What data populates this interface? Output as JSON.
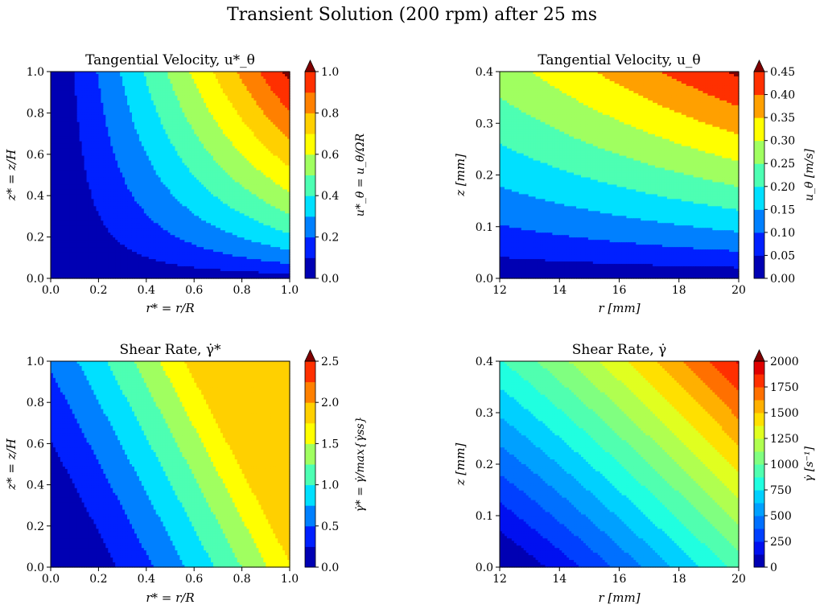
{
  "figure": {
    "suptitle": "Transient Solution (200 rpm) after 25 ms"
  },
  "chart_data": [
    {
      "type": "contourf",
      "title": "Tangential Velocity, u*_θ",
      "xlabel": "r* = r/R",
      "ylabel": "z* = z/H",
      "xlim": [
        0.0,
        1.0
      ],
      "ylim": [
        0.0,
        1.0
      ],
      "xticks": [
        "0.0",
        "0.2",
        "0.4",
        "0.6",
        "0.8",
        "1.0"
      ],
      "yticks": [
        "0.0",
        "0.2",
        "0.4",
        "0.6",
        "0.8",
        "1.0"
      ],
      "colorbar_label": "u*_θ = u_θ/ΩR",
      "colorbar_ticks": [
        "0.0",
        "0.2",
        "0.4",
        "0.6",
        "0.8",
        "1.0"
      ],
      "levels": [
        0.0,
        0.1,
        0.2,
        0.3,
        0.4,
        0.5,
        0.6,
        0.7,
        0.8,
        0.9,
        1.0
      ],
      "colorbar_extend": "max",
      "colormap": [
        "#0000b3",
        "#0020ff",
        "#0080ff",
        "#00e0ff",
        "#4dffb3",
        "#a0ff60",
        "#ffff00",
        "#ffd000",
        "#ff8000",
        "#ff3000",
        "#b00000"
      ],
      "extend_color": "#800000"
    },
    {
      "type": "contourf",
      "title": "Tangential Velocity, u_θ",
      "xlabel": "r [mm]",
      "ylabel": "z [mm]",
      "xlim": [
        12,
        20
      ],
      "ylim": [
        0.0,
        0.4
      ],
      "xticks": [
        "12",
        "14",
        "16",
        "18",
        "20"
      ],
      "yticks": [
        "0.0",
        "0.1",
        "0.2",
        "0.3",
        "0.4"
      ],
      "colorbar_label": "u_θ [m/s]",
      "colorbar_ticks": [
        "0.00",
        "0.05",
        "0.10",
        "0.15",
        "0.20",
        "0.25",
        "0.30",
        "0.35",
        "0.40",
        "0.45"
      ],
      "levels": [
        0.0,
        0.05,
        0.1,
        0.15,
        0.2,
        0.25,
        0.3,
        0.35,
        0.4,
        0.45
      ],
      "colorbar_extend": "max",
      "colormap": [
        "#0000b3",
        "#0020ff",
        "#0080ff",
        "#00e0ff",
        "#4dffb3",
        "#a0ff60",
        "#ffff00",
        "#ffa000",
        "#ff3000",
        "#b00000"
      ],
      "extend_color": "#800000"
    },
    {
      "type": "contourf",
      "title": "Shear Rate, γ̇*",
      "xlabel": "r* = r/R",
      "ylabel": "z* = z/H",
      "xlim": [
        0.0,
        1.0
      ],
      "ylim": [
        0.0,
        1.0
      ],
      "xticks": [
        "0.0",
        "0.2",
        "0.4",
        "0.6",
        "0.8",
        "1.0"
      ],
      "yticks": [
        "0.0",
        "0.2",
        "0.4",
        "0.6",
        "0.8",
        "1.0"
      ],
      "colorbar_label": "γ̇* = γ̇/max{γ̇ss}",
      "colorbar_ticks": [
        "0.0",
        "0.5",
        "1.0",
        "1.5",
        "2.0",
        "2.5"
      ],
      "levels": [
        0.0,
        0.25,
        0.5,
        0.75,
        1.0,
        1.25,
        1.5,
        1.75,
        2.0,
        2.25,
        2.5
      ],
      "colorbar_extend": "max",
      "colormap": [
        "#0000b3",
        "#0020ff",
        "#0080ff",
        "#00e0ff",
        "#4dffb3",
        "#a0ff60",
        "#ffff00",
        "#ffd000",
        "#ff8000",
        "#ff3000",
        "#b00000"
      ],
      "extend_color": "#800000"
    },
    {
      "type": "contourf",
      "title": "Shear Rate, γ̇",
      "xlabel": "r [mm]",
      "ylabel": "z [mm]",
      "xlim": [
        12,
        20
      ],
      "ylim": [
        0.0,
        0.4
      ],
      "xticks": [
        "12",
        "14",
        "16",
        "18",
        "20"
      ],
      "yticks": [
        "0.0",
        "0.1",
        "0.2",
        "0.3",
        "0.4"
      ],
      "colorbar_label": "γ̇ [s⁻¹]",
      "colorbar_ticks": [
        "0",
        "250",
        "500",
        "750",
        "1000",
        "1250",
        "1500",
        "1750",
        "2000"
      ],
      "levels": [
        0,
        125,
        250,
        375,
        500,
        625,
        750,
        875,
        1000,
        1125,
        1250,
        1375,
        1500,
        1625,
        1750,
        1875,
        2000
      ],
      "colorbar_extend": "max",
      "colormap": [
        "#0000b3",
        "#0010f0",
        "#0040ff",
        "#0070ff",
        "#00a0ff",
        "#00d0ff",
        "#20ffe0",
        "#50ffb0",
        "#80ff80",
        "#b0ff50",
        "#e0ff20",
        "#ffe000",
        "#ffb000",
        "#ff7000",
        "#ff3000",
        "#e00000",
        "#b00000"
      ],
      "extend_color": "#800000"
    }
  ]
}
